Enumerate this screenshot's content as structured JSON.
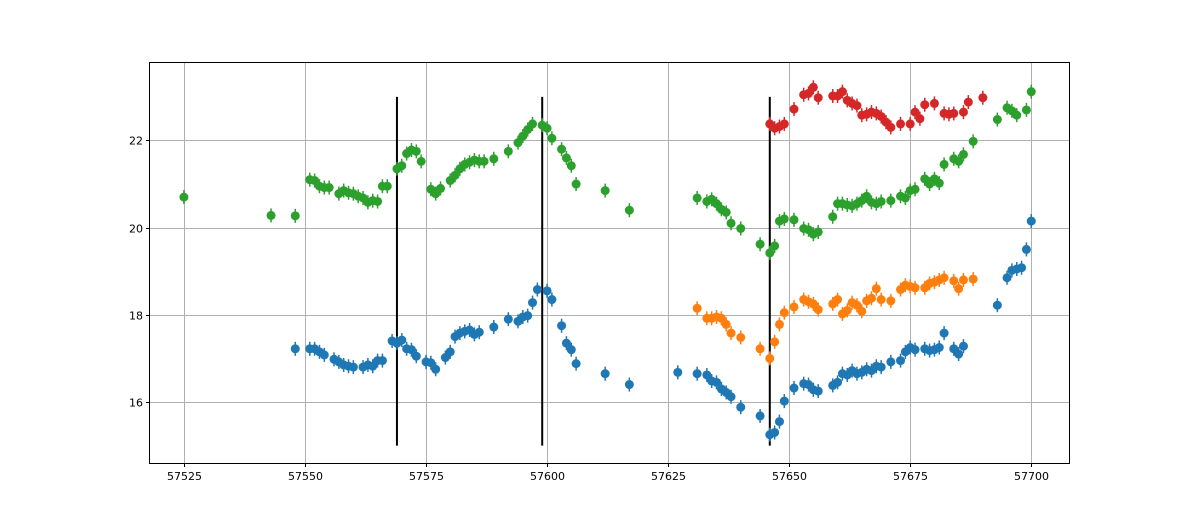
{
  "chart_data": {
    "type": "scatter",
    "title": "",
    "xlabel": "",
    "ylabel": "",
    "xlim": [
      57518,
      57708
    ],
    "ylim": [
      14.6,
      23.8
    ],
    "grid": true,
    "x_ticks": [
      57525,
      57550,
      57575,
      57600,
      57625,
      57650,
      57675,
      57700
    ],
    "y_ticks": [
      16,
      18,
      20,
      22
    ],
    "vlines": [
      {
        "x": 57569,
        "ymin": 15.0,
        "ymax": 23.0
      },
      {
        "x": 57599,
        "ymin": 15.0,
        "ymax": 23.0
      },
      {
        "x": 57646,
        "ymin": 15.0,
        "ymax": 23.0
      }
    ],
    "series": [
      {
        "color": "#1f77b4",
        "points": [
          [
            57548,
            17.22
          ],
          [
            57551,
            17.22
          ],
          [
            57552,
            17.22
          ],
          [
            57553,
            17.15
          ],
          [
            57554,
            17.08
          ],
          [
            57556,
            16.98
          ],
          [
            57557,
            16.92
          ],
          [
            57558,
            16.85
          ],
          [
            57559,
            16.82
          ],
          [
            57560,
            16.8
          ],
          [
            57562,
            16.8
          ],
          [
            57563,
            16.85
          ],
          [
            57564,
            16.82
          ],
          [
            57565,
            16.95
          ],
          [
            57566,
            16.95
          ],
          [
            57568,
            17.4
          ],
          [
            57569,
            17.35
          ],
          [
            57570,
            17.42
          ],
          [
            57571,
            17.22
          ],
          [
            57572,
            17.2
          ],
          [
            57573,
            17.05
          ],
          [
            57575,
            16.92
          ],
          [
            57576,
            16.9
          ],
          [
            57577,
            16.75
          ],
          [
            57579,
            17.02
          ],
          [
            57580,
            17.15
          ],
          [
            57581,
            17.5
          ],
          [
            57582,
            17.58
          ],
          [
            57583,
            17.62
          ],
          [
            57584,
            17.65
          ],
          [
            57585,
            17.55
          ],
          [
            57586,
            17.6
          ],
          [
            57589,
            17.72
          ],
          [
            57592,
            17.9
          ],
          [
            57594,
            17.85
          ],
          [
            57595,
            17.95
          ],
          [
            57596,
            17.98
          ],
          [
            57597,
            18.28
          ],
          [
            57598,
            18.58
          ],
          [
            57600,
            18.55
          ],
          [
            57601,
            18.35
          ],
          [
            57603,
            17.75
          ],
          [
            57604,
            17.35
          ],
          [
            57605,
            17.2
          ],
          [
            57606,
            16.88
          ],
          [
            57612,
            16.65
          ],
          [
            57617,
            16.4
          ],
          [
            57627,
            16.68
          ],
          [
            57631,
            16.65
          ],
          [
            57633,
            16.62
          ],
          [
            57634,
            16.48
          ],
          [
            57635,
            16.45
          ],
          [
            57636,
            16.3
          ],
          [
            57637,
            16.22
          ],
          [
            57638,
            16.12
          ],
          [
            57640,
            15.88
          ],
          [
            57644,
            15.68
          ],
          [
            57646,
            15.25
          ],
          [
            57647,
            15.3
          ],
          [
            57648,
            15.55
          ],
          [
            57649,
            16.02
          ],
          [
            57651,
            16.32
          ],
          [
            57653,
            16.42
          ],
          [
            57654,
            16.4
          ],
          [
            57655,
            16.28
          ],
          [
            57656,
            16.25
          ],
          [
            57659,
            16.38
          ],
          [
            57660,
            16.45
          ],
          [
            57661,
            16.65
          ],
          [
            57662,
            16.62
          ],
          [
            57663,
            16.72
          ],
          [
            57664,
            16.65
          ],
          [
            57665,
            16.68
          ],
          [
            57666,
            16.75
          ],
          [
            57667,
            16.72
          ],
          [
            57668,
            16.82
          ],
          [
            57669,
            16.8
          ],
          [
            57671,
            16.92
          ],
          [
            57673,
            16.95
          ],
          [
            57674,
            17.15
          ],
          [
            57675,
            17.25
          ],
          [
            57676,
            17.2
          ],
          [
            57678,
            17.22
          ],
          [
            57679,
            17.18
          ],
          [
            57680,
            17.2
          ],
          [
            57681,
            17.25
          ],
          [
            57682,
            17.58
          ],
          [
            57684,
            17.22
          ],
          [
            57685,
            17.1
          ],
          [
            57686,
            17.28
          ],
          [
            57693,
            18.22
          ],
          [
            57695,
            18.85
          ],
          [
            57696,
            19.02
          ],
          [
            57697,
            19.05
          ],
          [
            57698,
            19.08
          ],
          [
            57699,
            19.5
          ],
          [
            57700,
            20.15
          ]
        ]
      },
      {
        "color": "#ff7f0e",
        "points": [
          [
            57631,
            18.15
          ],
          [
            57633,
            17.92
          ],
          [
            57634,
            17.92
          ],
          [
            57635,
            17.95
          ],
          [
            57636,
            17.92
          ],
          [
            57637,
            17.78
          ],
          [
            57638,
            17.58
          ],
          [
            57640,
            17.48
          ],
          [
            57644,
            17.22
          ],
          [
            57646,
            17.0
          ],
          [
            57647,
            17.38
          ],
          [
            57648,
            17.78
          ],
          [
            57649,
            18.05
          ],
          [
            57651,
            18.18
          ],
          [
            57653,
            18.35
          ],
          [
            57654,
            18.3
          ],
          [
            57655,
            18.25
          ],
          [
            57656,
            18.12
          ],
          [
            57659,
            18.25
          ],
          [
            57660,
            18.35
          ],
          [
            57661,
            18.02
          ],
          [
            57662,
            18.1
          ],
          [
            57663,
            18.28
          ],
          [
            57664,
            18.22
          ],
          [
            57665,
            18.08
          ],
          [
            57666,
            18.32
          ],
          [
            57667,
            18.38
          ],
          [
            57668,
            18.6
          ],
          [
            57669,
            18.35
          ],
          [
            57671,
            18.32
          ],
          [
            57673,
            18.58
          ],
          [
            57674,
            18.68
          ],
          [
            57675,
            18.65
          ],
          [
            57676,
            18.62
          ],
          [
            57678,
            18.62
          ],
          [
            57679,
            18.72
          ],
          [
            57680,
            18.75
          ],
          [
            57681,
            18.8
          ],
          [
            57682,
            18.85
          ],
          [
            57684,
            18.78
          ],
          [
            57685,
            18.6
          ],
          [
            57686,
            18.8
          ],
          [
            57688,
            18.82
          ]
        ]
      },
      {
        "color": "#d62728",
        "points": [
          [
            57646,
            22.38
          ],
          [
            57647,
            22.28
          ],
          [
            57648,
            22.32
          ],
          [
            57649,
            22.38
          ],
          [
            57651,
            22.72
          ],
          [
            57653,
            23.05
          ],
          [
            57654,
            23.08
          ],
          [
            57655,
            23.22
          ],
          [
            57656,
            22.98
          ],
          [
            57659,
            23.02
          ],
          [
            57660,
            23.02
          ],
          [
            57661,
            23.12
          ],
          [
            57662,
            22.92
          ],
          [
            57663,
            22.85
          ],
          [
            57664,
            22.8
          ],
          [
            57665,
            22.58
          ],
          [
            57666,
            22.6
          ],
          [
            57667,
            22.65
          ],
          [
            57668,
            22.62
          ],
          [
            57669,
            22.55
          ],
          [
            57670,
            22.42
          ],
          [
            57671,
            22.3
          ],
          [
            57673,
            22.38
          ],
          [
            57675,
            22.38
          ],
          [
            57676,
            22.65
          ],
          [
            57677,
            22.5
          ],
          [
            57678,
            22.82
          ],
          [
            57680,
            22.85
          ],
          [
            57682,
            22.62
          ],
          [
            57683,
            22.6
          ],
          [
            57684,
            22.62
          ],
          [
            57686,
            22.65
          ],
          [
            57687,
            22.88
          ],
          [
            57690,
            22.98
          ]
        ]
      },
      {
        "color": "#2ca02c",
        "points": [
          [
            57525,
            20.7
          ],
          [
            57543,
            20.28
          ],
          [
            57548,
            20.27
          ],
          [
            57551,
            21.1
          ],
          [
            57552,
            21.08
          ],
          [
            57553,
            20.95
          ],
          [
            57554,
            20.92
          ],
          [
            57555,
            20.92
          ],
          [
            57557,
            20.78
          ],
          [
            57558,
            20.85
          ],
          [
            57559,
            20.8
          ],
          [
            57560,
            20.78
          ],
          [
            57561,
            20.72
          ],
          [
            57562,
            20.68
          ],
          [
            57563,
            20.58
          ],
          [
            57564,
            20.62
          ],
          [
            57565,
            20.6
          ],
          [
            57566,
            20.95
          ],
          [
            57567,
            20.95
          ],
          [
            57569,
            21.35
          ],
          [
            57570,
            21.42
          ],
          [
            57571,
            21.7
          ],
          [
            57572,
            21.78
          ],
          [
            57573,
            21.75
          ],
          [
            57574,
            21.52
          ],
          [
            57576,
            20.88
          ],
          [
            57577,
            20.78
          ],
          [
            57578,
            20.9
          ],
          [
            57580,
            21.08
          ],
          [
            57581,
            21.2
          ],
          [
            57582,
            21.35
          ],
          [
            57583,
            21.45
          ],
          [
            57584,
            21.5
          ],
          [
            57585,
            21.55
          ],
          [
            57586,
            21.52
          ],
          [
            57587,
            21.52
          ],
          [
            57589,
            21.58
          ],
          [
            57592,
            21.75
          ],
          [
            57594,
            21.95
          ],
          [
            57595,
            22.1
          ],
          [
            57596,
            22.25
          ],
          [
            57597,
            22.38
          ],
          [
            57599,
            22.35
          ],
          [
            57600,
            22.28
          ],
          [
            57601,
            22.05
          ],
          [
            57603,
            21.8
          ],
          [
            57604,
            21.6
          ],
          [
            57605,
            21.42
          ],
          [
            57606,
            21.0
          ],
          [
            57612,
            20.85
          ],
          [
            57617,
            20.4
          ],
          [
            57631,
            20.68
          ],
          [
            57633,
            20.6
          ],
          [
            57634,
            20.65
          ],
          [
            57635,
            20.55
          ],
          [
            57636,
            20.42
          ],
          [
            57637,
            20.35
          ],
          [
            57638,
            20.1
          ],
          [
            57640,
            19.98
          ],
          [
            57644,
            19.62
          ],
          [
            57646,
            19.42
          ],
          [
            57647,
            19.58
          ],
          [
            57648,
            20.15
          ],
          [
            57649,
            20.2
          ],
          [
            57651,
            20.18
          ],
          [
            57653,
            19.98
          ],
          [
            57654,
            19.95
          ],
          [
            57655,
            19.85
          ],
          [
            57656,
            19.9
          ],
          [
            57659,
            20.25
          ],
          [
            57660,
            20.55
          ],
          [
            57661,
            20.55
          ],
          [
            57662,
            20.52
          ],
          [
            57663,
            20.5
          ],
          [
            57664,
            20.55
          ],
          [
            57665,
            20.62
          ],
          [
            57666,
            20.72
          ],
          [
            57667,
            20.58
          ],
          [
            57668,
            20.55
          ],
          [
            57669,
            20.6
          ],
          [
            57671,
            20.62
          ],
          [
            57673,
            20.72
          ],
          [
            57674,
            20.68
          ],
          [
            57675,
            20.85
          ],
          [
            57676,
            20.88
          ],
          [
            57678,
            21.12
          ],
          [
            57679,
            21.0
          ],
          [
            57680,
            21.12
          ],
          [
            57681,
            21.02
          ],
          [
            57682,
            21.45
          ],
          [
            57684,
            21.58
          ],
          [
            57685,
            21.52
          ],
          [
            57686,
            21.68
          ],
          [
            57688,
            21.98
          ],
          [
            57693,
            22.48
          ],
          [
            57695,
            22.75
          ],
          [
            57696,
            22.68
          ],
          [
            57697,
            22.58
          ],
          [
            57699,
            22.7
          ],
          [
            57700,
            23.12
          ]
        ]
      }
    ]
  }
}
